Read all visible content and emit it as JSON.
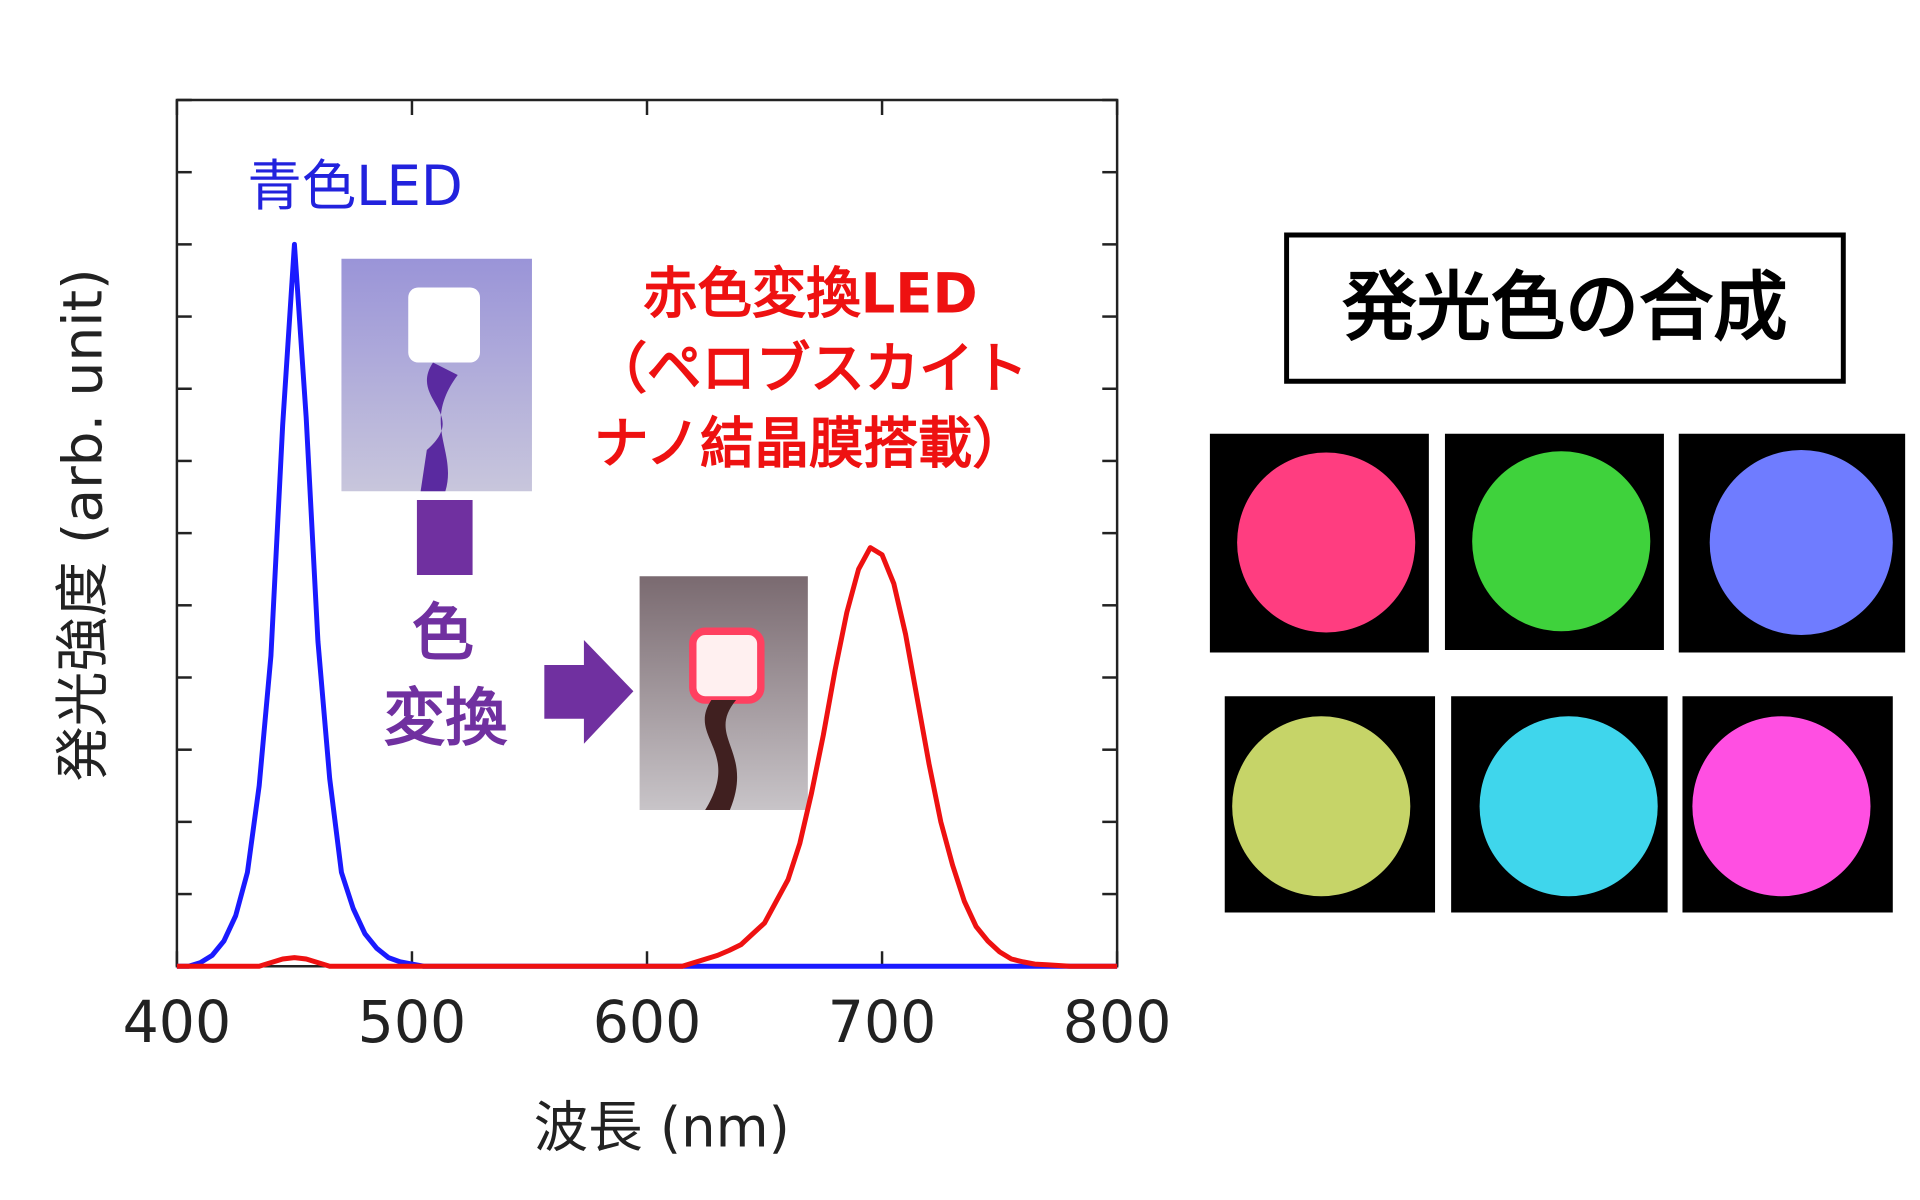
{
  "chart_data": {
    "type": "line",
    "x_label": "波長 (nm)",
    "y_label": "発光強度 (arb. unit)",
    "xlim": [
      400,
      800
    ],
    "xticks": [
      400,
      500,
      600,
      700,
      800
    ],
    "ylim": [
      0,
      12
    ],
    "yticks": [
      0,
      1,
      2,
      3,
      4,
      5,
      6,
      7,
      8,
      9,
      10,
      11,
      12
    ],
    "x": [
      400,
      405,
      410,
      415,
      420,
      425,
      430,
      435,
      440,
      445,
      450,
      455,
      460,
      465,
      470,
      475,
      480,
      485,
      490,
      495,
      500,
      505,
      510,
      515,
      520,
      525,
      530,
      535,
      540,
      545,
      550,
      555,
      560,
      565,
      570,
      575,
      580,
      585,
      590,
      595,
      600,
      605,
      610,
      615,
      620,
      625,
      630,
      635,
      640,
      645,
      650,
      655,
      660,
      665,
      670,
      675,
      680,
      685,
      690,
      695,
      700,
      705,
      710,
      715,
      720,
      725,
      730,
      735,
      740,
      745,
      750,
      755,
      760,
      765,
      770,
      775,
      780,
      785,
      790,
      795,
      800
    ],
    "series": [
      {
        "name": "青色LED",
        "color": "#1a1aff",
        "values": [
          0,
          0,
          0.05,
          0.15,
          0.35,
          0.7,
          1.3,
          2.5,
          4.3,
          7.5,
          10,
          7.6,
          4.5,
          2.6,
          1.3,
          0.8,
          0.45,
          0.25,
          0.12,
          0.06,
          0.03,
          0,
          0,
          0,
          0,
          0,
          0,
          0,
          0,
          0,
          0,
          0,
          0,
          0,
          0,
          0,
          0,
          0,
          0,
          0,
          0,
          0,
          0,
          0,
          0,
          0,
          0,
          0,
          0,
          0,
          0,
          0,
          0,
          0,
          0,
          0,
          0,
          0,
          0,
          0,
          0,
          0,
          0,
          0,
          0,
          0,
          0,
          0,
          0,
          0,
          0,
          0,
          0,
          0,
          0,
          0,
          0,
          0,
          0,
          0,
          0
        ]
      },
      {
        "name": "赤色変換LED",
        "color": "#ee1111",
        "values": [
          0,
          0,
          0,
          0,
          0,
          0,
          0,
          0,
          0.05,
          0.1,
          0.12,
          0.1,
          0.05,
          0,
          0,
          0,
          0,
          0,
          0,
          0,
          0,
          0,
          0,
          0,
          0,
          0,
          0,
          0,
          0,
          0,
          0,
          0,
          0,
          0,
          0,
          0,
          0,
          0,
          0,
          0,
          0,
          0,
          0,
          0,
          0.05,
          0.1,
          0.15,
          0.22,
          0.3,
          0.45,
          0.6,
          0.9,
          1.2,
          1.7,
          2.4,
          3.2,
          4.1,
          4.9,
          5.5,
          5.8,
          5.7,
          5.3,
          4.6,
          3.7,
          2.8,
          2.0,
          1.4,
          0.9,
          0.55,
          0.35,
          0.2,
          0.1,
          0.06,
          0.03,
          0.02,
          0.01,
          0,
          0,
          0,
          0,
          0
        ]
      }
    ],
    "annotations": [
      "（ペロブスカイト",
      "ナノ結晶膜搭載）",
      "色",
      "変換"
    ]
  },
  "panel_title": "発光色の合成"
}
